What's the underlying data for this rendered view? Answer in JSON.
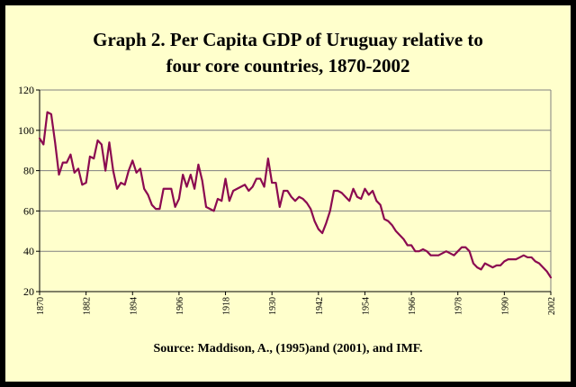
{
  "chart_data": {
    "type": "line",
    "title": "Graph 2. Per Capita GDP of Uruguay relative to four core countries, 1870-2002",
    "title_lines": [
      "Graph 2. Per Capita GDP of Uruguay relative to",
      "four core countries, 1870-2002"
    ],
    "source": "Source: Maddison, A., (1995)and (2001), and IMF.",
    "xlabel": "",
    "ylabel": "",
    "ylim": [
      20,
      120
    ],
    "yticks": [
      20,
      40,
      60,
      80,
      100,
      120
    ],
    "xlim": [
      1870,
      2002
    ],
    "xticks": [
      1870,
      1882,
      1894,
      1906,
      1918,
      1930,
      1942,
      1954,
      1966,
      1978,
      1990,
      2002
    ],
    "grid": true,
    "colors": {
      "line": "#8B0A50",
      "background": "#FFFFCC",
      "grid": "#808080",
      "frame": "#000000"
    },
    "series": [
      {
        "x": [
          1870,
          1871,
          1872,
          1873,
          1874,
          1875,
          1876,
          1877,
          1878,
          1879,
          1880,
          1881,
          1882,
          1883,
          1884,
          1885,
          1886,
          1887,
          1888,
          1889,
          1890,
          1891,
          1892,
          1893,
          1894,
          1895,
          1896,
          1897,
          1898,
          1899,
          1900,
          1901,
          1902,
          1903,
          1904,
          1905,
          1906,
          1907,
          1908,
          1909,
          1910,
          1911,
          1912,
          1913,
          1914,
          1915,
          1916,
          1917,
          1918,
          1919,
          1920,
          1921,
          1922,
          1923,
          1924,
          1925,
          1926,
          1927,
          1928,
          1929,
          1930,
          1931,
          1932,
          1933,
          1934,
          1935,
          1936,
          1937,
          1938,
          1939,
          1940,
          1941,
          1942,
          1943,
          1944,
          1945,
          1946,
          1947,
          1948,
          1949,
          1950,
          1951,
          1952,
          1953,
          1954,
          1955,
          1956,
          1957,
          1958,
          1959,
          1960,
          1961,
          1962,
          1963,
          1964,
          1965,
          1966,
          1967,
          1968,
          1969,
          1970,
          1971,
          1972,
          1973,
          1974,
          1975,
          1976,
          1977,
          1978,
          1979,
          1980,
          1981,
          1982,
          1983,
          1984,
          1985,
          1986,
          1987,
          1988,
          1989,
          1990,
          1991,
          1992,
          1993,
          1994,
          1995,
          1996,
          1997,
          1998,
          1999,
          2000,
          2001,
          2002
        ],
        "values": [
          96,
          93,
          109,
          108,
          94,
          78,
          84,
          84,
          88,
          79,
          81,
          73,
          74,
          87,
          86,
          95,
          93,
          80,
          94,
          80,
          71,
          74,
          73,
          80,
          85,
          79,
          81,
          71,
          68,
          63,
          61,
          61,
          71,
          71,
          71,
          62,
          66,
          78,
          72,
          78,
          71,
          83,
          75,
          62,
          61,
          60,
          66,
          65,
          76,
          65,
          70,
          71,
          72,
          73,
          70,
          72,
          76,
          76,
          72,
          86,
          74,
          74,
          62,
          70,
          70,
          67,
          65,
          67,
          66,
          64,
          61,
          55,
          51,
          49,
          54,
          60,
          70,
          70,
          69,
          67,
          65,
          71,
          67,
          66,
          71,
          68,
          70,
          65,
          63,
          56,
          55,
          53,
          50,
          48,
          46,
          43,
          43,
          40,
          40,
          41,
          40,
          38,
          38,
          38,
          39,
          40,
          39,
          38,
          40,
          42,
          42,
          40,
          34,
          32,
          31,
          34,
          33,
          32,
          33,
          33,
          35,
          36,
          36,
          36,
          37,
          38,
          37,
          37,
          35,
          34,
          32,
          30,
          27
        ]
      }
    ]
  }
}
